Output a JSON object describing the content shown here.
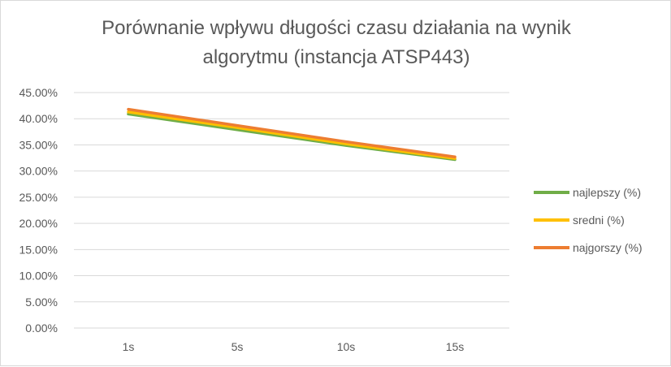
{
  "chart_data": {
    "type": "line",
    "title_lines": [
      "Porównanie wpływu długości czasu działania na wynik",
      "algorytmu (instancja ATSP443)"
    ],
    "categories": [
      "1s",
      "5s",
      "10s",
      "15s"
    ],
    "ylim": [
      0,
      0.45
    ],
    "y_ticks": [
      "0.00%",
      "5.00%",
      "10.00%",
      "15.00%",
      "20.00%",
      "25.00%",
      "30.00%",
      "35.00%",
      "40.00%",
      "45.00%"
    ],
    "grid": true,
    "legend_position": "right",
    "series": [
      {
        "name": "najlepszy (%)",
        "color": "#70ad47",
        "values": [
          0.409,
          0.379,
          0.349,
          0.322
        ]
      },
      {
        "name": "sredni (%)",
        "color": "#ffc000",
        "values": [
          0.413,
          0.383,
          0.352,
          0.324
        ]
      },
      {
        "name": "najgorszy (%)",
        "color": "#ed7d31",
        "values": [
          0.418,
          0.387,
          0.356,
          0.327
        ]
      }
    ]
  }
}
